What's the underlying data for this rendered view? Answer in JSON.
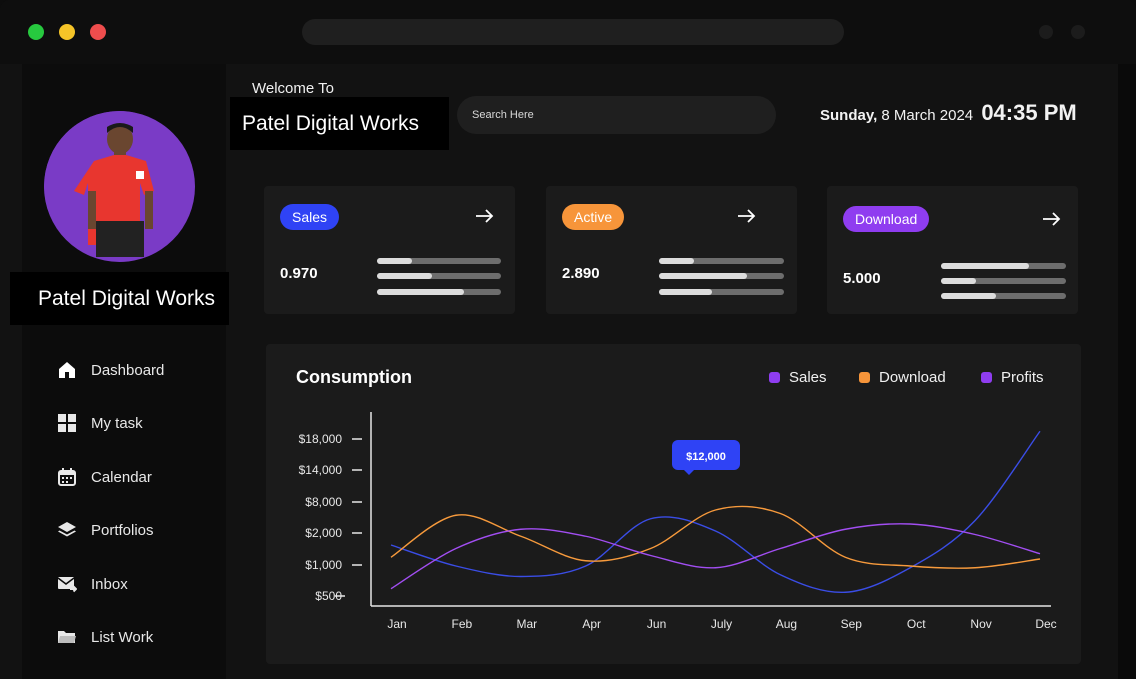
{
  "header": {
    "welcome": "Welcome To",
    "brand": "Patel Digital Works",
    "search_placeholder": "Search Here",
    "day": "Sunday,",
    "date": "8 March 2024",
    "time": "04:35 PM"
  },
  "profile": {
    "name": "Patel Digital Works"
  },
  "sidebar": {
    "items": [
      {
        "label": "Dashboard",
        "icon": "home-icon"
      },
      {
        "label": "My task",
        "icon": "grid-icon"
      },
      {
        "label": "Calendar",
        "icon": "calendar-icon"
      },
      {
        "label": "Portfolios",
        "icon": "layers-icon"
      },
      {
        "label": "Inbox",
        "icon": "mail-icon"
      },
      {
        "label": "List Work",
        "icon": "folder-icon"
      }
    ]
  },
  "cards": [
    {
      "label": "Sales",
      "value": "0.970",
      "color": "#2f43f5",
      "bars": [
        0.28,
        0.44,
        0.7
      ]
    },
    {
      "label": "Active",
      "value": "2.890",
      "color": "#f7953a",
      "bars": [
        0.28,
        0.7,
        0.42
      ]
    },
    {
      "label": "Download",
      "value": "5.000",
      "color": "#8f3df0",
      "bars": [
        0.7,
        0.28,
        0.44
      ]
    }
  ],
  "chart_data": {
    "type": "line",
    "title": "Consumption",
    "categories": [
      "Jan",
      "Feb",
      "Mar",
      "Apr",
      "Jun",
      "July",
      "Aug",
      "Sep",
      "Oct",
      "Nov",
      "Dec"
    ],
    "y_ticks": [
      "$18,000",
      "$14,000",
      "$8,000",
      "$2,000",
      "$1,000",
      "$500"
    ],
    "series": [
      {
        "name": "Sales",
        "color": "#3a4de6",
        "values": [
          2.8,
          1.6,
          1.0,
          1.6,
          4.3,
          3.6,
          1.1,
          0.1,
          1.5,
          4.2,
          9.3
        ]
      },
      {
        "name": "Download",
        "color": "#f79a3c",
        "values": [
          2.1,
          4.5,
          3.3,
          1.9,
          2.6,
          4.8,
          4.6,
          2.1,
          1.6,
          1.5,
          2.0
        ]
      },
      {
        "name": "Profits",
        "color": "#a24ef2",
        "values": [
          0.3,
          2.6,
          3.7,
          3.3,
          2.2,
          1.5,
          2.6,
          3.7,
          4.0,
          3.4,
          2.3
        ]
      }
    ],
    "legend": [
      "Sales",
      "Download",
      "Profits"
    ],
    "legend_colors": [
      "#8f3df0",
      "#f7953a",
      "#8f3df0"
    ],
    "tooltip": {
      "label": "$12,000",
      "color": "#2f43f5"
    }
  }
}
